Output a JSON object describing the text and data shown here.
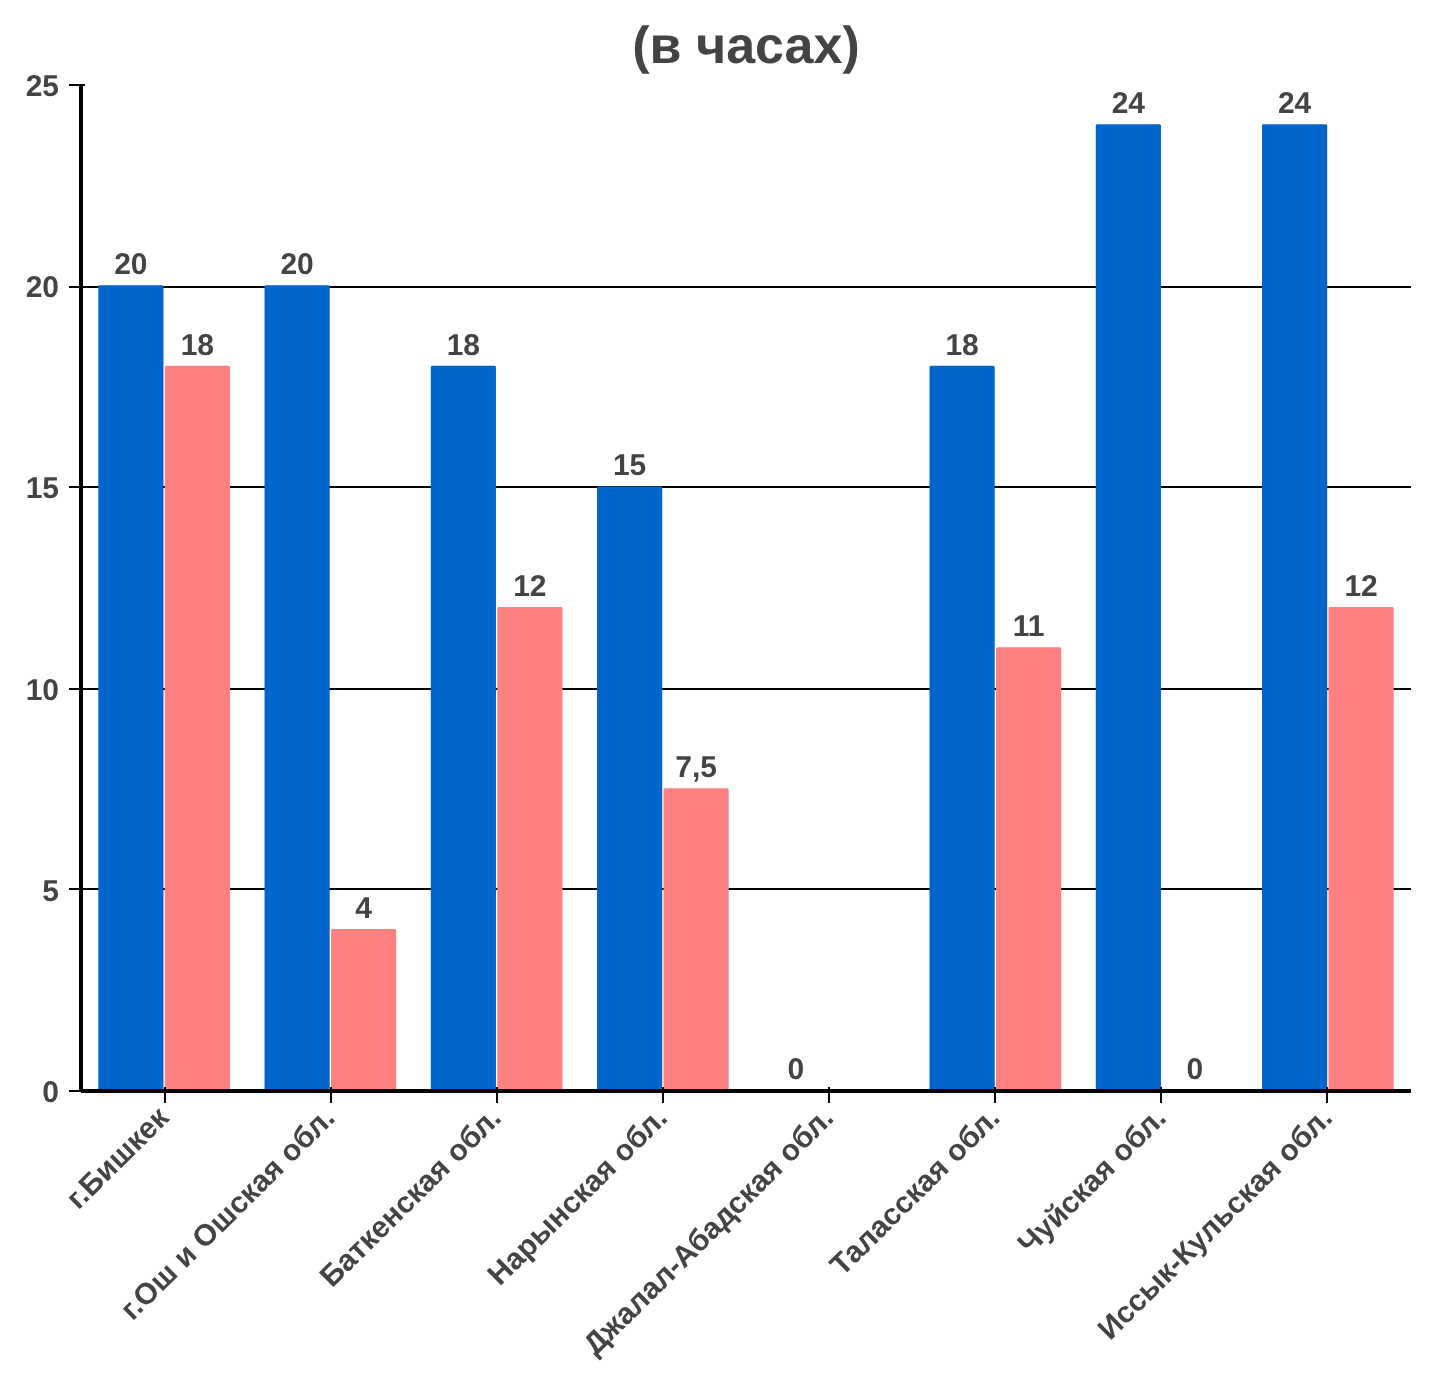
{
  "chart_data": {
    "type": "bar",
    "title": "(в часах)",
    "categories": [
      "г.Бишкек",
      "г.Ош и Ошская обл.",
      "Баткенская обл.",
      "Нарынская обл.",
      "Джалал-Абадская обл.",
      "Таласская обл.",
      "Чуйская обл.",
      "Иссык-Кульская обл."
    ],
    "series": [
      {
        "color": "#0066cc",
        "values": [
          20,
          20,
          18,
          15,
          0,
          18,
          24,
          24
        ],
        "value_labels": [
          "20",
          "20",
          "18",
          "15",
          "0",
          "18",
          "24",
          "24"
        ]
      },
      {
        "color": "#ff8080",
        "values": [
          18,
          4,
          12,
          7.5,
          null,
          11,
          0,
          12
        ],
        "value_labels": [
          "18",
          "4",
          "12",
          "7,5",
          null,
          "11",
          "0",
          "12"
        ]
      }
    ],
    "ylim": [
      0,
      25
    ],
    "yticks": [
      0,
      5,
      10,
      15,
      20,
      25
    ],
    "grid": "y"
  }
}
